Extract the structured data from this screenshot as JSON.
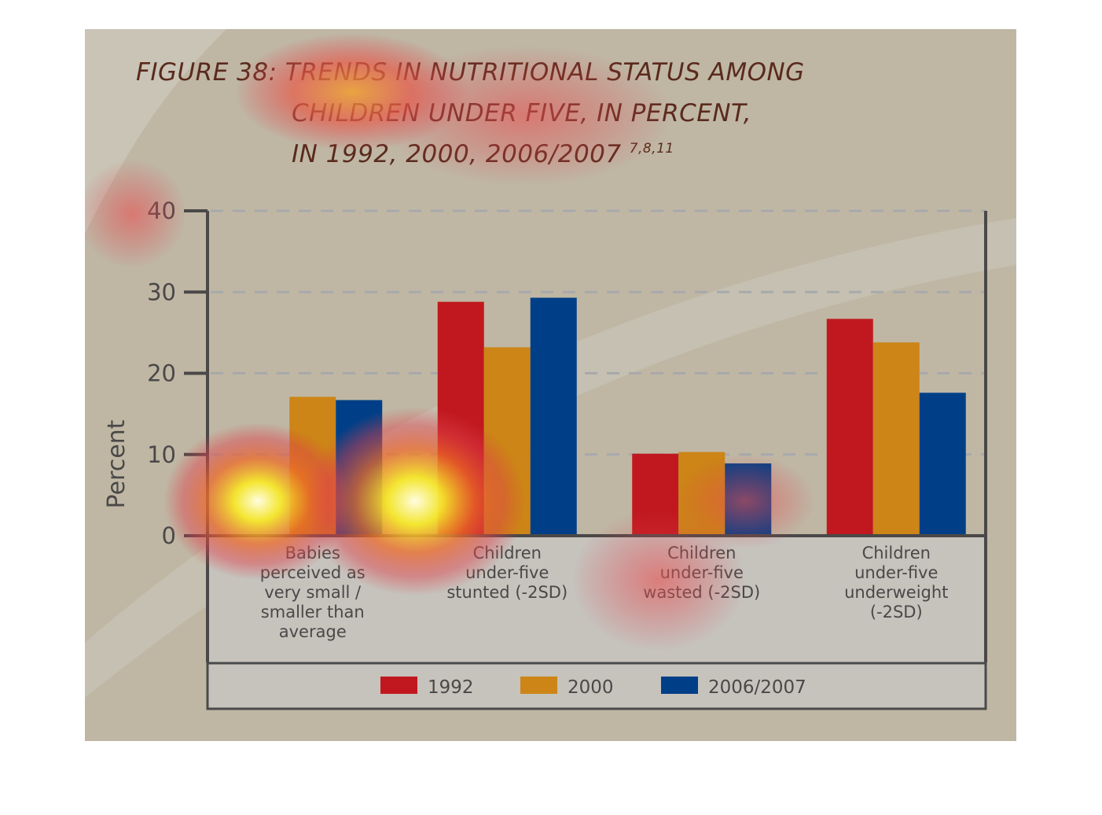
{
  "chart_data": {
    "type": "bar",
    "title_lines": [
      "FIGURE 38: TRENDS IN NUTRITIONAL STATUS AMONG",
      "CHILDREN UNDER FIVE, IN PERCENT,",
      "IN 1992, 2000, 2006/2007"
    ],
    "title_superscript": "7,8,11",
    "ylabel": "Percent",
    "xlabel": "",
    "ylim": [
      0,
      40
    ],
    "yticks": [
      "0",
      "10",
      "20",
      "30",
      "40"
    ],
    "grid": true,
    "legend_position": "bottom",
    "categories": [
      [
        "Babies",
        "perceived as",
        "very small /",
        "smaller than",
        "average"
      ],
      [
        "Children",
        "under-five",
        "stunted (-2SD)"
      ],
      [
        "Children",
        "under-five",
        "wasted (-2SD)"
      ],
      [
        "Children",
        "under-five",
        "underweight",
        "(-2SD)"
      ]
    ],
    "series": [
      {
        "name": "1992",
        "color": "#c0181e",
        "values": [
          null,
          28.8,
          10.1,
          26.7
        ]
      },
      {
        "name": "2000",
        "color": "#cc8516",
        "values": [
          17.1,
          23.2,
          10.3,
          23.8
        ]
      },
      {
        "name": "2006/2007",
        "color": "#003f87",
        "values": [
          16.7,
          29.3,
          8.9,
          17.6
        ]
      }
    ]
  }
}
